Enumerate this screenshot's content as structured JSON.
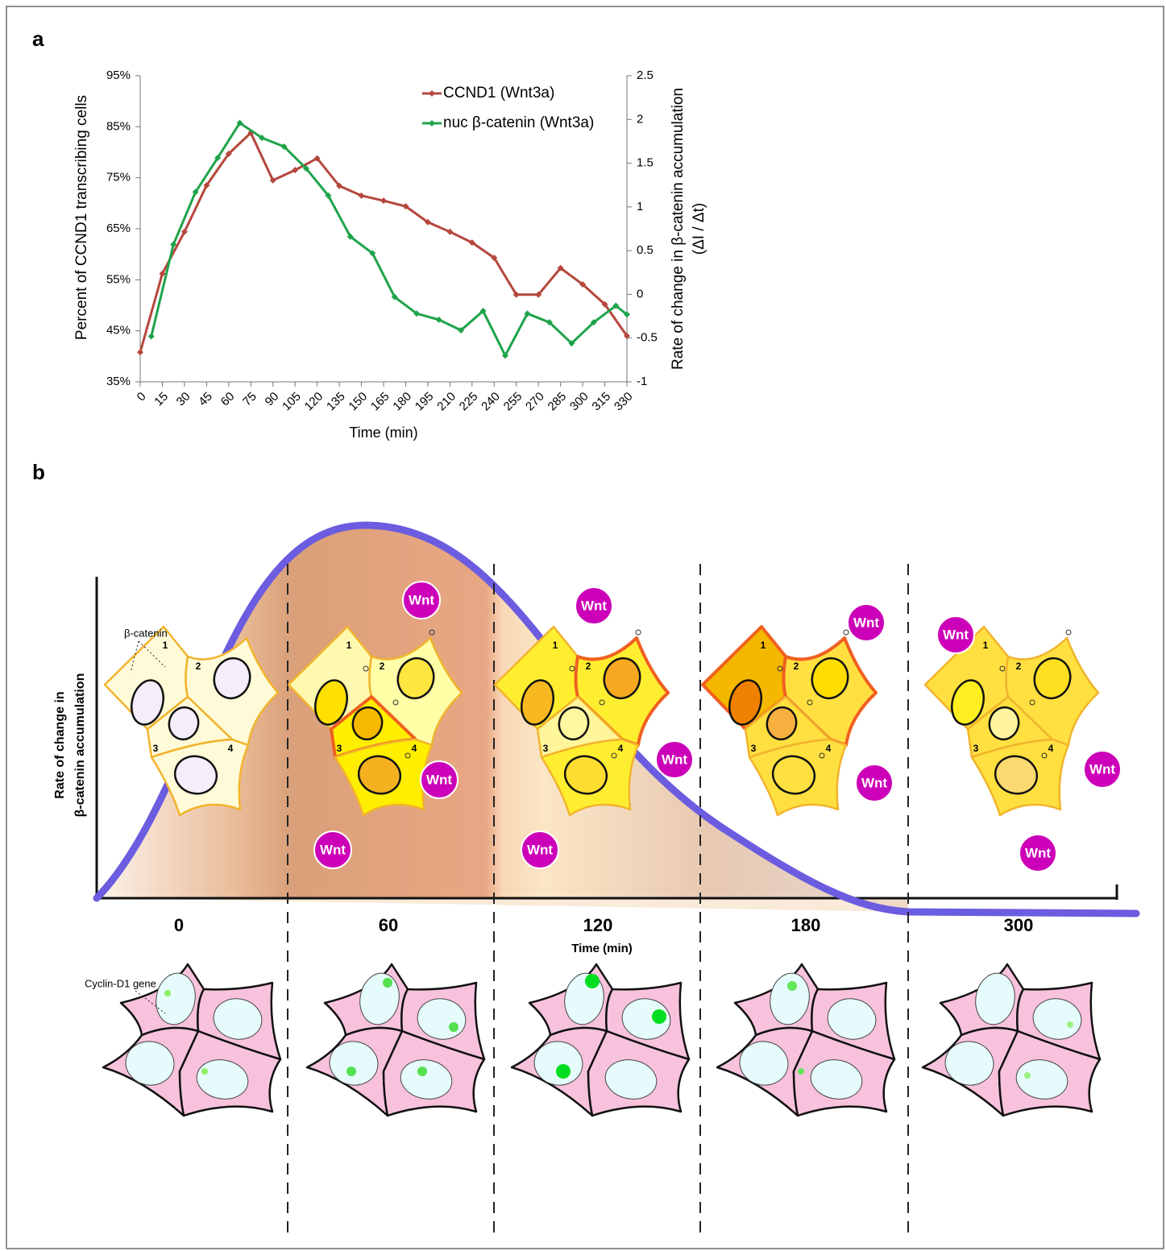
{
  "panel_labels": [
    "a",
    "b"
  ],
  "chart_data": {
    "type": "line",
    "xlabel": "Time (min)",
    "ylabel": "Percent of CCND1  transcribing cells",
    "y2label": [
      "Rate of change in β-catenin accumulation",
      "(ΔI / Δt)"
    ],
    "xlim": [
      0,
      330
    ],
    "xticks": [
      0,
      15,
      30,
      45,
      60,
      75,
      90,
      105,
      120,
      135,
      150,
      165,
      180,
      195,
      210,
      225,
      240,
      255,
      270,
      285,
      300,
      315,
      330
    ],
    "ylim": [
      35,
      95
    ],
    "yticks": [
      {
        "value": 35,
        "label": "35%"
      },
      {
        "value": 45,
        "label": "45%"
      },
      {
        "value": 55,
        "label": "55%"
      },
      {
        "value": 65,
        "label": "65%"
      },
      {
        "value": 75,
        "label": "75%"
      },
      {
        "value": 85,
        "label": "85%"
      },
      {
        "value": 95,
        "label": "95%"
      }
    ],
    "y2lim": [
      -1,
      2.5
    ],
    "y2ticks": [
      -1,
      -0.5,
      0,
      0.5,
      1,
      1.5,
      2,
      2.5
    ],
    "grid": false,
    "legend": "top",
    "series": [
      {
        "name": "CCND1 (Wnt3a)",
        "color": "#b5473c",
        "x": [
          0,
          15,
          30,
          45,
          60,
          75,
          90,
          105,
          120,
          135,
          150,
          165,
          180,
          195,
          210,
          225,
          240,
          255,
          270,
          285,
          300,
          315,
          330
        ],
        "values": [
          40.8,
          56.2,
          64.4,
          73.5,
          79.7,
          83.8,
          74.5,
          76.5,
          78.8,
          73.4,
          71.5,
          70.5,
          69.4,
          66.3,
          64.4,
          62.3,
          59.3,
          52.1,
          52.1,
          57.3,
          54.1,
          50.2,
          44
        ]
      },
      {
        "name": "nuc β-catenin (Wnt3a)",
        "color": "#1fa34a",
        "axis": "y2",
        "x": [
          7.5,
          22.5,
          37.5,
          52.5,
          67.5,
          82.5,
          97.5,
          112.5,
          127.5,
          142.5,
          157.5,
          172.5,
          187.5,
          202.5,
          217.5,
          232.5,
          247.5,
          262.5,
          277.5,
          292.5,
          307.5,
          322.5,
          330
        ],
        "values": [
          -0.48,
          0.57,
          1.17,
          1.56,
          1.96,
          1.79,
          1.69,
          1.44,
          1.13,
          0.66,
          0.47,
          -0.03,
          -0.22,
          -0.29,
          -0.41,
          -0.19,
          -0.7,
          -0.22,
          -0.32,
          -0.56,
          -0.32,
          -0.13,
          -0.23
        ]
      }
    ]
  },
  "diagram": {
    "y_label": [
      "Rate  of change in",
      "β-catenin accumulation"
    ],
    "x_label": "Time (min)",
    "time_points": [
      "0",
      "60",
      "120",
      "180",
      "300"
    ],
    "beta_catenin_label": "β-catenin",
    "cyclin_label": "Cyclin-D1 gene",
    "wnt_label": "Wnt",
    "cell_numbers": [
      "1",
      "2",
      "3",
      "4"
    ]
  }
}
